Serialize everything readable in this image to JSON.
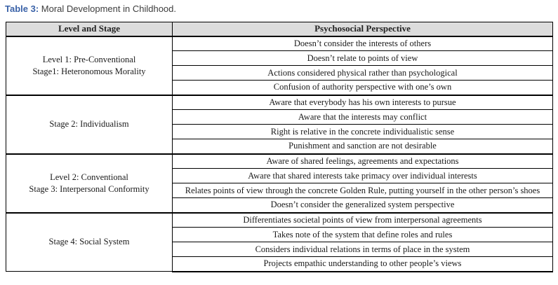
{
  "caption": {
    "prefix": "Table 3:",
    "text": " Moral Development in Childhood."
  },
  "colors": {
    "caption_accent": "#3a62a8",
    "header_background": "#dcdcdc",
    "border": "#000000",
    "body_text": "#1a1a1a"
  },
  "table": {
    "columns": [
      "Level and Stage",
      "Psychosocial Perspective"
    ],
    "groups": [
      {
        "stage_lines": [
          "Level 1: Pre-Conventional",
          "Stage1: Heteronomous Morality"
        ],
        "perspectives": [
          "Doesn’t consider the interests of others",
          "Doesn’t relate to points of view",
          "Actions considered physical rather than psychological",
          "Confusion of authority perspective with one’s own"
        ]
      },
      {
        "stage_lines": [
          "Stage 2: Individualism"
        ],
        "perspectives": [
          "Aware that everybody has his own interests to pursue",
          "Aware that the interests may conflict",
          "Right is relative in the concrete individualistic sense",
          "Punishment and sanction are not desirable"
        ]
      },
      {
        "stage_lines": [
          "Level 2: Conventional",
          "Stage 3: Interpersonal Conformity"
        ],
        "perspectives": [
          "Aware of shared feelings, agreements and expectations",
          "Aware that shared interests take primacy over individual interests",
          "Relates points of view through the concrete Golden Rule, putting yourself in the other person’s shoes",
          "Doesn’t consider the generalized system perspective"
        ]
      },
      {
        "stage_lines": [
          "Stage 4: Social System"
        ],
        "perspectives": [
          "Differentiates societal points of view from interpersonal agreements",
          "Takes note of the system that define roles and rules",
          "Considers individual relations in terms of place in the system",
          "Projects empathic understanding to other people’s views"
        ]
      }
    ]
  }
}
